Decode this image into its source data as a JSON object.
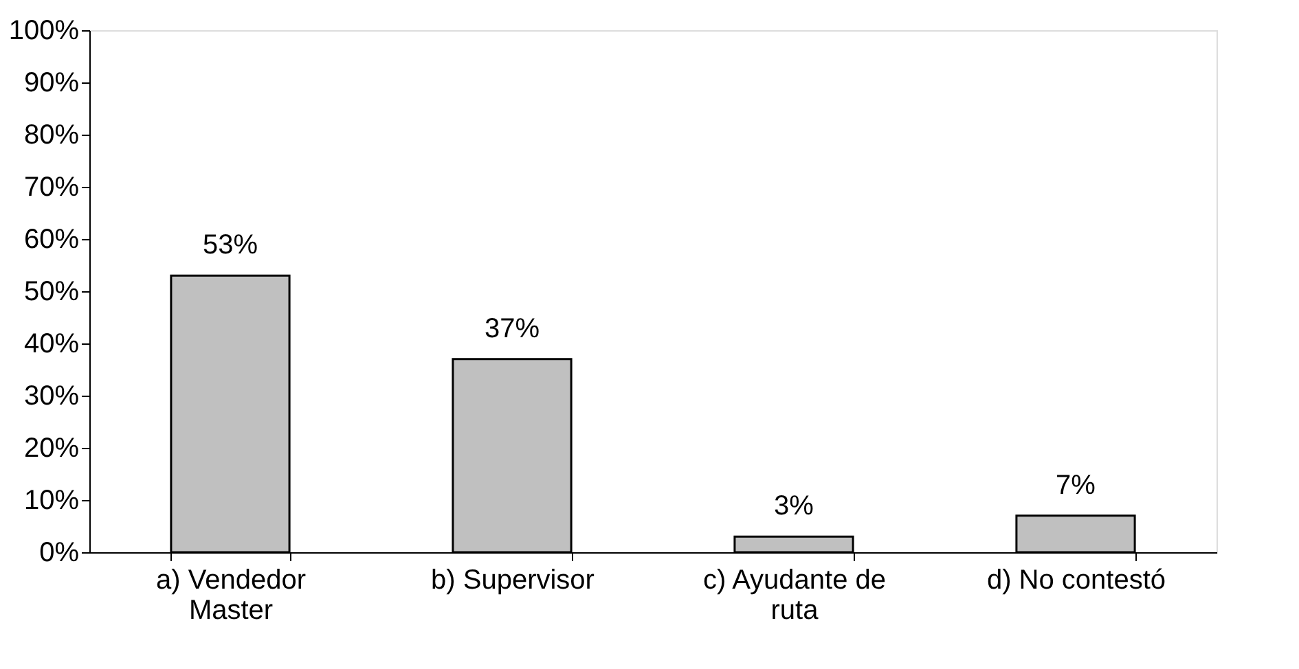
{
  "chart_data": {
    "type": "bar",
    "categories": [
      "a) Vendedor Master",
      "b) Supervisor",
      "c) Ayudante de ruta",
      "d) No contestó"
    ],
    "values": [
      53,
      37,
      3,
      7
    ],
    "color": "#c0c0c0",
    "value_labels": [
      "53%",
      "37%",
      "3%",
      "7%"
    ],
    "ylim": [
      0,
      100
    ],
    "yticks": [
      {
        "value": 0,
        "label": "0%"
      },
      {
        "value": 10,
        "label": "10%"
      },
      {
        "value": 20,
        "label": "20%"
      },
      {
        "value": 30,
        "label": "30%"
      },
      {
        "value": 40,
        "label": "40%"
      },
      {
        "value": 50,
        "label": "50%"
      },
      {
        "value": 60,
        "label": "60%"
      },
      {
        "value": 70,
        "label": "70%"
      },
      {
        "value": 80,
        "label": "80%"
      },
      {
        "value": 90,
        "label": "90%"
      },
      {
        "value": 100,
        "label": "100%"
      }
    ],
    "grid": false
  }
}
